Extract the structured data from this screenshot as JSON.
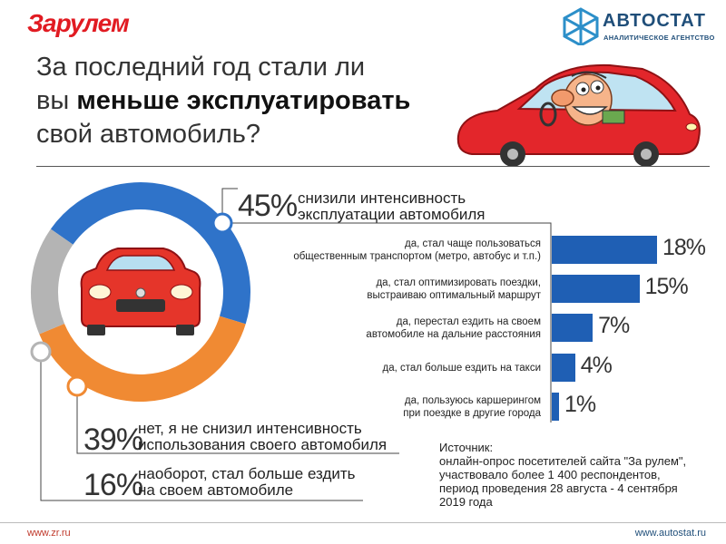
{
  "header": {
    "logo_left": "За рулем",
    "logo_right_name": "АВТОСТАТ",
    "logo_right_sub": "АНАЛИТИЧЕСКОЕ АГЕНТСТВО",
    "title_line1": "За последний год стали ли",
    "title_line2_plain": "вы ",
    "title_line2_bold": "меньше эксплуатировать",
    "title_line3": "свой автомобиль?"
  },
  "colors": {
    "blue": "#2f73c9",
    "orange": "#f08a33",
    "gray": "#b4b4b4",
    "bar": "#1f5fb4",
    "brand_red": "#e11b22"
  },
  "chart_data": [
    {
      "type": "pie",
      "slices": [
        {
          "label": "снизили интенсивность эксплуатации автомобиля",
          "value": 45,
          "text": "45%"
        },
        {
          "label": "нет, я не снизил интенсивность использования своего автомобиля",
          "value": 39,
          "text": "39%"
        },
        {
          "label": "наоборот, стал больше ездить на своем автомобиле",
          "value": 16,
          "text": "16%"
        }
      ]
    },
    {
      "type": "bar",
      "orientation": "horizontal",
      "categories": [
        [
          "да, стал чаще пользоваться",
          "общественным транспортом (метро, автобус и т.п.)"
        ],
        [
          "да, стал оптимизировать поездки,",
          "выстраиваю оптимальный маршрут"
        ],
        [
          "да, перестал ездить на своем",
          "автомобиле на дальние расстояния"
        ],
        [
          "да, стал больше ездить на такси"
        ],
        [
          "да, пользуюсь каршерингом",
          "при поездке в другие города"
        ]
      ],
      "values": [
        18,
        15,
        7,
        4,
        1
      ],
      "value_labels": [
        "18%",
        "15%",
        "7%",
        "4%",
        "1%"
      ]
    }
  ],
  "source": {
    "heading": "Источник:",
    "lines": [
      "онлайн-опрос посетителей сайта \"За рулем\",",
      "участвовало более 1 400 респондентов,",
      "период проведения 28 августа - 4 сентября",
      "2019 года"
    ]
  },
  "footer": {
    "left": "www.zr.ru",
    "right": "www.autostat.ru"
  }
}
